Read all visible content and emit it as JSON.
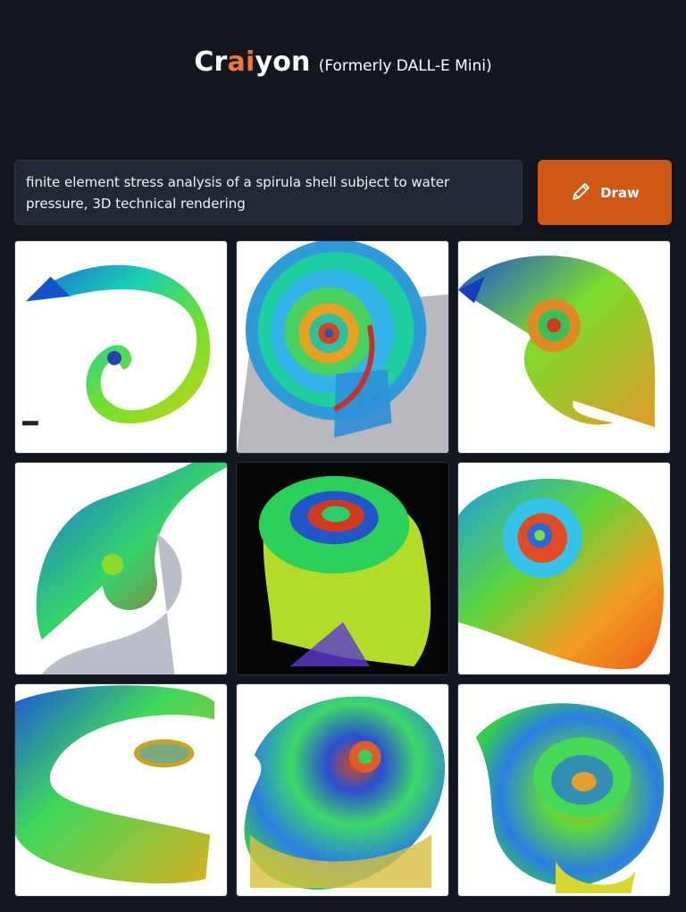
{
  "header": {
    "brand_part1": "Cr",
    "brand_accent": "ai",
    "brand_part2": "yon",
    "subtitle": "(Formerly DALL-E Mini)"
  },
  "prompt": {
    "text": "finite element stress analysis of a spirula shell subject to water pressure, 3D technical rendering"
  },
  "draw_button": {
    "label": "Draw",
    "icon": "pencil-icon"
  },
  "results": {
    "count": 9,
    "items": [
      {
        "subject": "generated spiral shell stress map"
      },
      {
        "subject": "generated spiral shell stress map"
      },
      {
        "subject": "generated spiral shell stress map"
      },
      {
        "subject": "generated spiral shell stress map"
      },
      {
        "subject": "generated spiral shell stress map"
      },
      {
        "subject": "generated spiral shell stress map"
      },
      {
        "subject": "generated spiral shell stress map"
      },
      {
        "subject": "generated spiral shell stress map"
      },
      {
        "subject": "generated spiral shell stress map"
      }
    ]
  },
  "colors": {
    "background": "#131720",
    "accent_text": "#f0783c",
    "button": "#cf5816",
    "prompt_box": "#232836"
  }
}
